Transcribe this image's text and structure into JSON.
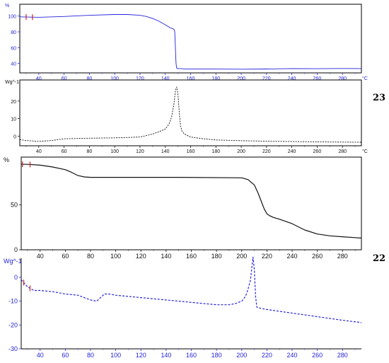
{
  "colors": {
    "blue": "#2323d9",
    "black": "#111111",
    "red": "#d42020",
    "axis": "#000000"
  },
  "samples": [
    {
      "id": "s23",
      "label": "23"
    },
    {
      "id": "s22",
      "label": "22"
    }
  ],
  "chart_data": [
    {
      "type": "line",
      "id": "tga23",
      "ylabel": "%",
      "xunit": "°C",
      "xlim": [
        25,
        295
      ],
      "ylim": [
        28,
        115
      ],
      "xticks": [
        40,
        60,
        80,
        100,
        120,
        140,
        160,
        180,
        200,
        220,
        240,
        260,
        280
      ],
      "yticks": [
        40,
        60,
        80,
        100
      ],
      "series": [
        {
          "style": "solid",
          "color": "blue",
          "x": [
            25,
            40,
            60,
            80,
            100,
            110,
            120,
            125,
            130,
            135,
            140,
            144,
            146,
            147,
            147.5,
            148,
            148.5,
            149,
            150,
            152,
            155,
            160,
            180,
            200,
            220,
            240,
            260,
            280,
            295
          ],
          "y": [
            99,
            98.5,
            99.5,
            101,
            102,
            102,
            101,
            99.5,
            97,
            93.5,
            89,
            85,
            84,
            83,
            80,
            60,
            40,
            34,
            33.5,
            33.5,
            33,
            33,
            32.8,
            32.7,
            32.9,
            33.5,
            33.3,
            33.6,
            33.5
          ]
        }
      ],
      "markers": [
        30,
        35
      ]
    },
    {
      "type": "line",
      "id": "dsc23",
      "ylabel": "Wg^-1",
      "xunit": "°C",
      "xlim": [
        25,
        295
      ],
      "ylim": [
        -5.5,
        32
      ],
      "xticks": [
        40,
        60,
        80,
        100,
        120,
        140,
        160,
        180,
        200,
        220,
        240,
        260,
        280
      ],
      "yticks": [
        0,
        10,
        20
      ],
      "series": [
        {
          "style": "dashed",
          "color": "black",
          "x": [
            25,
            30,
            40,
            50,
            60,
            80,
            100,
            110,
            120,
            125,
            130,
            135,
            140,
            143,
            145,
            147,
            148,
            149,
            150,
            151,
            152,
            153,
            155,
            160,
            170,
            180,
            200,
            220,
            240,
            260,
            280,
            295
          ],
          "y": [
            -2,
            -2.5,
            -3,
            -2.5,
            -1.5,
            -1.2,
            -1,
            -0.8,
            -0.5,
            0.3,
            1.2,
            2.5,
            4,
            7,
            11,
            19,
            26,
            28,
            24,
            14,
            6,
            3,
            1.2,
            -0.5,
            -1.5,
            -2.2,
            -2.6,
            -2.9,
            -3.1,
            -3.3,
            -3.4,
            -3.5
          ]
        }
      ]
    },
    {
      "type": "line",
      "id": "tga22",
      "ylabel": "%",
      "xlim": [
        25,
        295
      ],
      "ylim": [
        0,
        103
      ],
      "xticks": [
        40,
        60,
        80,
        100,
        120,
        140,
        160,
        180,
        200,
        220,
        240,
        260,
        280
      ],
      "yticks": [
        0,
        50
      ],
      "series": [
        {
          "style": "solid",
          "color": "black",
          "x": [
            25,
            30,
            40,
            50,
            60,
            65,
            70,
            75,
            80,
            100,
            150,
            200,
            205,
            210,
            213,
            216,
            218,
            220,
            222,
            225,
            230,
            240,
            250,
            260,
            270,
            280,
            290,
            295
          ],
          "y": [
            95,
            95,
            94,
            92,
            89,
            86,
            82.5,
            81,
            80.5,
            80.5,
            80.5,
            80,
            78,
            72,
            63,
            52,
            45,
            40,
            38,
            36,
            34,
            29,
            22,
            17.5,
            15.5,
            14.5,
            13.5,
            13
          ]
        }
      ],
      "markers": [
        26,
        32
      ]
    },
    {
      "type": "line",
      "id": "dsc22",
      "ylabel": "Wg^-1",
      "xlim": [
        25,
        295
      ],
      "ylim": [
        -30,
        8
      ],
      "xticks": [
        40,
        60,
        80,
        100,
        120,
        140,
        160,
        180,
        200,
        220,
        240,
        260,
        280
      ],
      "yticks": [
        0,
        -10,
        -20,
        -30
      ],
      "series": [
        {
          "style": "dashed",
          "color": "blue",
          "x": [
            25,
            30,
            35,
            40,
            50,
            60,
            70,
            75,
            80,
            85,
            88,
            91,
            95,
            100,
            120,
            140,
            160,
            180,
            190,
            195,
            200,
            203,
            205,
            207,
            208,
            209,
            210,
            211,
            212,
            215,
            220,
            240,
            260,
            280,
            295
          ],
          "y": [
            -1,
            -4,
            -5.5,
            -5.5,
            -6,
            -7,
            -7.5,
            -8.5,
            -9.5,
            -10,
            -8.5,
            -7,
            -7,
            -7.5,
            -8.5,
            -9.5,
            -10.5,
            -11.5,
            -11.5,
            -11,
            -10,
            -8,
            -5,
            -1,
            4,
            8.5,
            3,
            -8,
            -12.5,
            -13,
            -13.5,
            -15,
            -16.5,
            -18,
            -19
          ]
        }
      ],
      "markers": [
        27,
        32
      ]
    }
  ]
}
